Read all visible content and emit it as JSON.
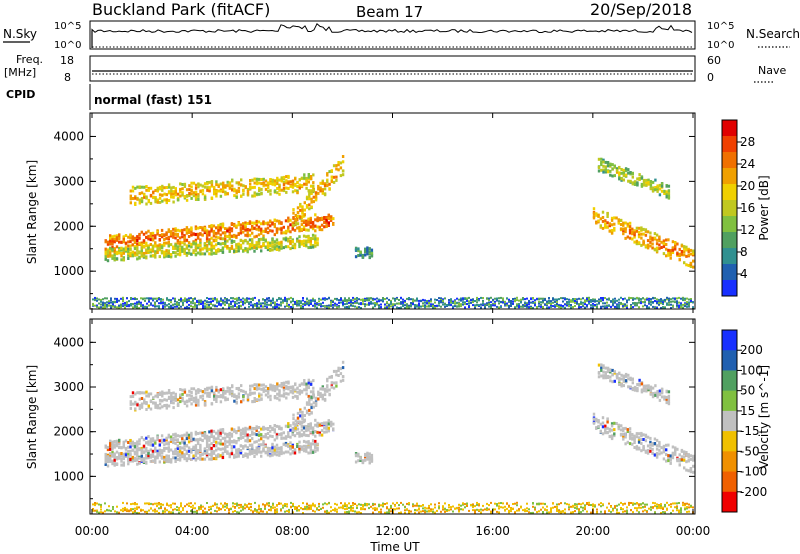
{
  "header": {
    "station": "Buckland Park (fitACF)",
    "beam": "Beam 17",
    "date": "20/Sep/2018"
  },
  "top_panels": {
    "nsky_label": "N.Sky",
    "nsky_ticks": [
      "10^5",
      "10^0"
    ],
    "nsky_right_ticks": [
      "10^5",
      "10^0"
    ],
    "nsearch_label": "N.Search",
    "freq_label": "Freq.",
    "freq_unit": "[MHz]",
    "freq_ticks": [
      "18",
      "8"
    ],
    "nave_label": "Nave",
    "nave_ticks": [
      "60",
      "0"
    ],
    "cpid_label": "CPID",
    "cpid_value": "normal (fast) 151"
  },
  "chart_data": [
    {
      "type": "heatmap",
      "panel": "power",
      "ylabel": "Slant Range [km]",
      "ylim": [
        180,
        4500
      ],
      "yticks": [
        "1000",
        "2000",
        "3000",
        "4000"
      ],
      "xlim": [
        "00:00",
        "24:00"
      ],
      "colorbar": {
        "label": "Power [dB]",
        "range": [
          0,
          32
        ],
        "ticks": [
          "4",
          "8",
          "12",
          "16",
          "20",
          "24",
          "28"
        ],
        "colors": [
          "#1830ff",
          "#2060b0",
          "#309090",
          "#50a060",
          "#80c040",
          "#c0c820",
          "#f0d000",
          "#f0a000",
          "#f07000",
          "#f04000",
          "#e00000"
        ]
      },
      "echo_bands": [
        {
          "t": [
            0.5,
            9.6
          ],
          "r_start": [
            1250,
            1650
          ],
          "r_end": [
            1250,
            2150
          ],
          "width_km": 180,
          "level": 27
        },
        {
          "t": [
            0.5,
            9.0
          ],
          "r_start": [
            1800,
            1400
          ],
          "r_end": [
            1800,
            1700
          ],
          "width_km": 140,
          "level": 19
        },
        {
          "t": [
            1.5,
            8.8
          ],
          "r_start": [
            3300,
            2700
          ],
          "r_end": [
            3300,
            3000
          ],
          "width_km": 200,
          "level": 22
        },
        {
          "t": [
            8.0,
            10.0
          ],
          "r_start": [
            2400,
            2200
          ],
          "r_end": [
            2400,
            3400
          ],
          "width_km": 220,
          "level": 23
        },
        {
          "t": [
            20.0,
            24.0
          ],
          "r_start": [
            2500,
            2250
          ],
          "r_end": [
            2500,
            1300
          ],
          "width_km": 200,
          "level": 25
        },
        {
          "t": [
            20.2,
            23.0
          ],
          "r_start": [
            2800,
            3400
          ],
          "r_end": [
            2800,
            2800
          ],
          "width_km": 150,
          "level": 17
        },
        {
          "t": [
            10.5,
            11.2
          ],
          "r_start": [
            1400,
            1450
          ],
          "r_end": [
            1400,
            1450
          ],
          "width_km": 120,
          "level": 10
        }
      ],
      "near_range_km": [
        200,
        430
      ]
    },
    {
      "type": "heatmap",
      "panel": "velocity",
      "ylabel": "Slant Range [km]",
      "xlabel": "Time UT",
      "ylim": [
        180,
        4500
      ],
      "yticks": [
        "1000",
        "2000",
        "3000",
        "4000"
      ],
      "xticks": [
        "00:00",
        "04:00",
        "08:00",
        "12:00",
        "16:00",
        "20:00",
        "00:00"
      ],
      "colorbar": {
        "label": "Velocity [m s^-1]",
        "ticks": [
          "200",
          "100",
          "50",
          "15",
          "-15",
          "-50",
          "-100",
          "-200"
        ],
        "colors": [
          "#1830ff",
          "#2060b0",
          "#50a060",
          "#80c040",
          "#c0c0c0",
          "#f0c000",
          "#f09000",
          "#f06000",
          "#f00000"
        ]
      },
      "near_range_km": [
        200,
        430
      ]
    }
  ]
}
